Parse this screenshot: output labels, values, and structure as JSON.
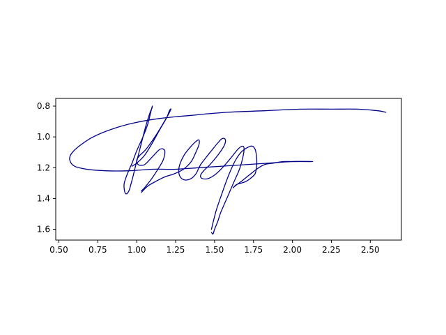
{
  "chart_data": {
    "type": "line",
    "title": "",
    "xlabel": "",
    "ylabel": "",
    "xlim": [
      0.48,
      2.7
    ],
    "ylim": [
      1.67,
      0.75
    ],
    "y_inverted": true,
    "grid": false,
    "legend": "none",
    "line_color": "#00008b",
    "x_ticks": [
      0.5,
      0.75,
      1.0,
      1.25,
      1.5,
      1.75,
      2.0,
      2.25,
      2.5
    ],
    "x_tick_labels": [
      "0.50",
      "0.75",
      "1.00",
      "1.25",
      "1.50",
      "1.75",
      "2.00",
      "2.25",
      "2.50"
    ],
    "y_ticks": [
      0.8,
      1.0,
      1.2,
      1.4,
      1.6
    ],
    "y_tick_labels": [
      "0.8",
      "1.0",
      "1.2",
      "1.4",
      "1.6"
    ],
    "series": [
      {
        "strokes": [
          {
            "x": [
              1.1,
              1.09,
              1.07,
              1.04,
              1.0,
              0.97,
              0.94,
              0.92,
              0.92,
              0.93,
              0.95,
              0.97,
              0.99,
              1.01,
              1.03,
              1.05,
              1.07,
              1.09,
              1.1
            ],
            "y": [
              0.8,
              0.84,
              0.92,
              1.0,
              1.09,
              1.17,
              1.24,
              1.3,
              1.34,
              1.37,
              1.35,
              1.28,
              1.2,
              1.12,
              1.04,
              0.96,
              0.89,
              0.83,
              0.81
            ]
          },
          {
            "x": [
              0.97,
              1.0,
              1.05,
              1.1,
              1.15,
              1.19,
              1.21,
              1.22,
              1.2,
              1.16,
              1.11,
              1.06,
              1.02,
              1.0,
              1.01,
              1.05,
              1.1,
              1.15,
              1.18,
              1.17,
              1.13,
              1.09,
              1.05,
              1.03
            ],
            "y": [
              1.19,
              1.17,
              1.12,
              1.04,
              0.95,
              0.88,
              0.83,
              0.82,
              0.86,
              0.93,
              1.01,
              1.08,
              1.12,
              1.15,
              1.18,
              1.18,
              1.13,
              1.08,
              1.09,
              1.15,
              1.22,
              1.28,
              1.33,
              1.35
            ]
          },
          {
            "x": [
              1.03,
              1.07,
              1.12,
              1.18,
              1.24,
              1.3,
              1.35,
              1.38,
              1.4,
              1.4,
              1.38,
              1.35,
              1.31,
              1.28,
              1.27,
              1.28,
              1.31,
              1.35,
              1.38,
              1.4,
              1.41
            ],
            "y": [
              1.36,
              1.32,
              1.29,
              1.26,
              1.24,
              1.21,
              1.16,
              1.1,
              1.05,
              1.02,
              1.03,
              1.06,
              1.11,
              1.17,
              1.22,
              1.26,
              1.28,
              1.27,
              1.24,
              1.2,
              1.18
            ]
          },
          {
            "x": [
              1.41,
              1.44,
              1.48,
              1.52,
              1.55,
              1.57,
              1.56,
              1.52,
              1.47,
              1.43,
              1.41,
              1.42,
              1.46,
              1.51,
              1.56,
              1.61,
              1.65,
              1.68,
              1.69,
              1.68,
              1.66,
              1.63,
              1.6,
              1.57,
              1.54,
              1.52,
              1.5,
              1.49,
              1.48
            ],
            "y": [
              1.18,
              1.14,
              1.09,
              1.04,
              1.01,
              1.02,
              1.06,
              1.12,
              1.18,
              1.22,
              1.25,
              1.27,
              1.27,
              1.24,
              1.19,
              1.13,
              1.08,
              1.06,
              1.08,
              1.14,
              1.21,
              1.28,
              1.35,
              1.42,
              1.49,
              1.55,
              1.6,
              1.63,
              1.62
            ]
          },
          {
            "x": [
              1.48,
              1.51,
              1.55,
              1.59,
              1.63,
              1.67,
              1.71,
              1.74,
              1.76,
              1.77,
              1.77,
              1.76,
              1.73,
              1.7,
              1.67,
              1.64,
              1.62,
              1.63,
              1.67,
              1.72,
              1.77,
              1.82,
              1.88,
              1.94,
              2.0,
              2.06,
              2.12
            ],
            "y": [
              1.6,
              1.48,
              1.36,
              1.25,
              1.16,
              1.1,
              1.07,
              1.06,
              1.08,
              1.13,
              1.19,
              1.24,
              1.27,
              1.29,
              1.3,
              1.31,
              1.33,
              1.32,
              1.29,
              1.25,
              1.21,
              1.18,
              1.17,
              1.16,
              1.16,
              1.16,
              1.16
            ]
          },
          {
            "x": [
              2.13,
              2.0,
              1.85,
              1.7,
              1.55,
              1.4,
              1.25,
              1.1,
              0.95,
              0.8,
              0.68,
              0.6,
              0.57,
              0.58,
              0.63,
              0.72,
              0.84,
              0.98,
              1.15,
              1.35,
              1.58,
              1.82,
              2.05,
              2.25,
              2.42,
              2.55,
              2.6
            ],
            "y": [
              1.16,
              1.16,
              1.17,
              1.18,
              1.19,
              1.2,
              1.21,
              1.21,
              1.22,
              1.22,
              1.21,
              1.19,
              1.15,
              1.11,
              1.06,
              1.0,
              0.95,
              0.91,
              0.88,
              0.86,
              0.84,
              0.83,
              0.82,
              0.82,
              0.82,
              0.83,
              0.84
            ]
          }
        ]
      }
    ]
  }
}
